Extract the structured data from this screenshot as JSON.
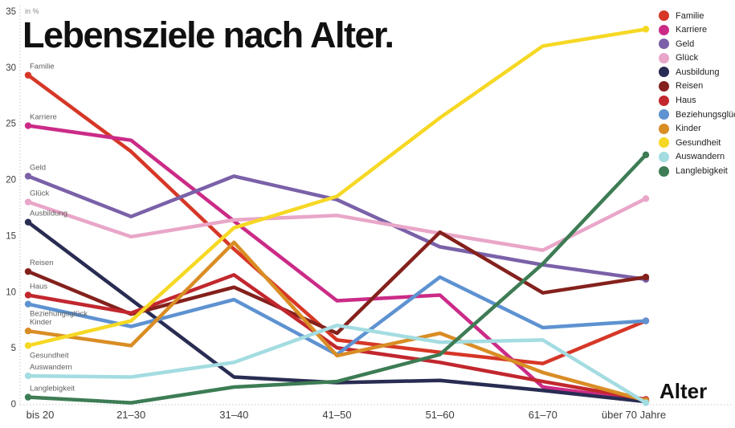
{
  "title": "Lebensziele nach Alter.",
  "chart_data": {
    "type": "line",
    "title": "Lebensziele nach Alter.",
    "ylabel": "in %",
    "xlabel": "Alter",
    "ylim": [
      0,
      35
    ],
    "grid": false,
    "legend_position": "top-right",
    "y_ticks": [
      35,
      30,
      25,
      20,
      15,
      10,
      5,
      0
    ],
    "categories": [
      "bis 20",
      "21–30",
      "31–40",
      "41–50",
      "51–60",
      "61–70",
      "über 70 Jahre"
    ],
    "series": [
      {
        "key": "familie",
        "name": "Familie",
        "color": "#d63727",
        "label_side": "above",
        "values": [
          29.3,
          22.5,
          13.8,
          5.7,
          4.6,
          3.6,
          7.4
        ]
      },
      {
        "key": "karriere",
        "name": "Karriere",
        "color": "#cb2b87",
        "label_side": "above",
        "values": [
          24.8,
          23.5,
          16.3,
          9.2,
          9.7,
          1.5,
          0.3
        ]
      },
      {
        "key": "geld",
        "name": "Geld",
        "color": "#7a61a8",
        "label_side": "above",
        "values": [
          20.3,
          16.7,
          20.3,
          18.2,
          14.0,
          12.4,
          11.1
        ]
      },
      {
        "key": "glueck",
        "name": "Glück",
        "color": "#e9a6c8",
        "label_side": "above",
        "values": [
          18.0,
          14.9,
          16.4,
          16.8,
          15.2,
          13.7,
          18.3
        ]
      },
      {
        "key": "ausbildung",
        "name": "Ausbildung",
        "color": "#292c52",
        "label_side": "above",
        "values": [
          16.2,
          9.3,
          2.4,
          1.9,
          2.1,
          1.2,
          0.2
        ]
      },
      {
        "key": "reisen",
        "name": "Reisen",
        "color": "#84211d",
        "label_side": "above",
        "values": [
          11.8,
          8.0,
          10.4,
          6.3,
          15.3,
          9.9,
          11.3
        ]
      },
      {
        "key": "haus",
        "name": "Haus",
        "color": "#c2272e",
        "label_side": "above",
        "values": [
          9.7,
          8.1,
          11.5,
          5.0,
          3.7,
          2.0,
          0.4
        ]
      },
      {
        "key": "beziehungsglueck",
        "name": "Beziehungsglück",
        "color": "#5e92d1",
        "label_side": "below",
        "values": [
          8.9,
          6.9,
          9.3,
          4.4,
          11.3,
          6.8,
          7.4
        ]
      },
      {
        "key": "kinder",
        "name": "Kinder",
        "color": "#d98d25",
        "label_side": "above",
        "values": [
          6.5,
          5.2,
          14.4,
          4.3,
          6.3,
          2.8,
          0.3
        ]
      },
      {
        "key": "gesundheit",
        "name": "Gesundheit",
        "color": "#f6d824",
        "label_side": "below",
        "values": [
          5.2,
          7.4,
          15.7,
          18.5,
          25.5,
          31.9,
          33.4
        ]
      },
      {
        "key": "auswandern",
        "name": "Auswandern",
        "color": "#a3dce1",
        "label_side": "above",
        "values": [
          2.5,
          2.4,
          3.7,
          7.0,
          5.5,
          5.7,
          0.1
        ]
      },
      {
        "key": "langlebigkeit",
        "name": "Langlebigkeit",
        "color": "#3d7c54",
        "label_side": "above",
        "values": [
          0.6,
          0.1,
          1.5,
          2.0,
          4.4,
          12.5,
          22.2
        ]
      }
    ]
  },
  "style": {
    "axis_dot_color": "#c8c8c8",
    "tick_text_color": "#3c3c3c",
    "series_label_color": "#5f5f5f"
  }
}
